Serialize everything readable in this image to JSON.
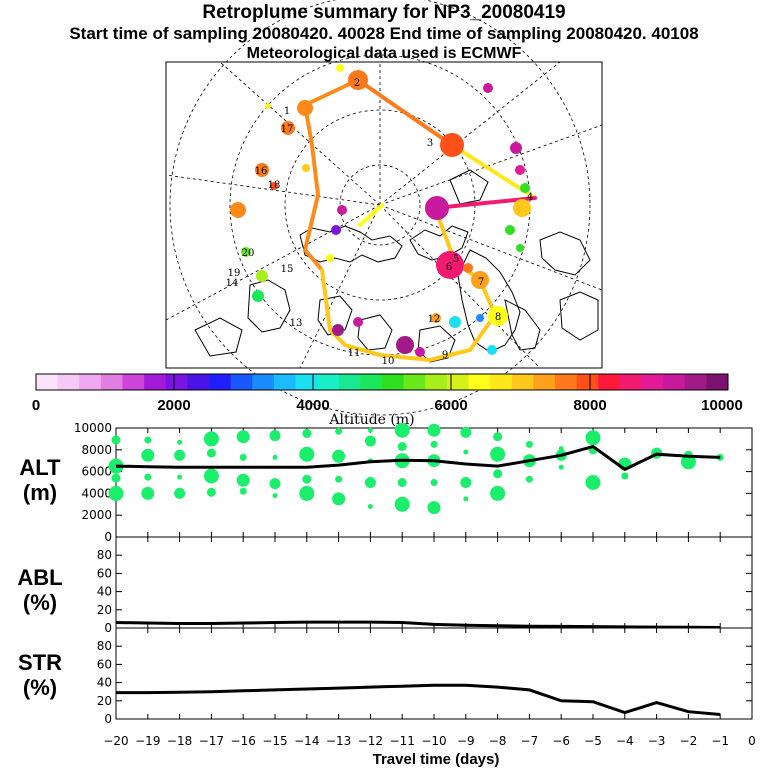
{
  "header": {
    "title": "Retroplume summary for NP3_20080419",
    "sampling_line": "Start time of sampling 20080420. 40028     End time of sampling 20080420. 40108",
    "met_line": "Meteorological data used is ECMWF"
  },
  "colorbar": {
    "ticks": [
      "0",
      "2000",
      "4000",
      "6000",
      "8000",
      "10000"
    ],
    "label": "Altitude (m)",
    "colors": [
      "#fbe3fb",
      "#f6c8f6",
      "#f0a8f0",
      "#e27ee2",
      "#cc44d8",
      "#a31ad8",
      "#7a14e0",
      "#4a14e8",
      "#2020ff",
      "#1a58ff",
      "#1a8cff",
      "#1abcff",
      "#1ae0f0",
      "#1af0c8",
      "#1ae890",
      "#1ae85a",
      "#30e020",
      "#6ae81a",
      "#a8ee1a",
      "#d8f01a",
      "#ffff1a",
      "#ffe81a",
      "#ffc81a",
      "#ffa01a",
      "#ff781a",
      "#ff501a",
      "#ff1a3c",
      "#f01a70",
      "#e01a98",
      "#c81a9c",
      "#a01a88",
      "#7a1470"
    ]
  },
  "map": {
    "day_labels": [
      "1",
      "2",
      "3",
      "4",
      "5",
      "6",
      "7",
      "8",
      "9",
      "10",
      "11",
      "12",
      "13",
      "14",
      "15",
      "16",
      "17",
      "18",
      "19",
      "20"
    ]
  },
  "chart_data": [
    {
      "type": "line",
      "panel": "ALT",
      "ylabel": "ALT\n(m)",
      "label_line1": "ALT",
      "label_line2": "(m)",
      "ylim": [
        0,
        10000
      ],
      "yticks": [
        "0",
        "2000",
        "4000",
        "6000",
        "8000",
        "10000"
      ],
      "x": [
        -20,
        -19,
        -18,
        -17,
        -16,
        -15,
        -14,
        -13,
        -12,
        -11,
        -10,
        -9,
        -8,
        -7,
        -6,
        -5,
        -4,
        -3,
        -2,
        -1
      ],
      "values": [
        6500,
        6450,
        6400,
        6400,
        6400,
        6400,
        6400,
        6600,
        6900,
        7050,
        7000,
        6700,
        6500,
        7000,
        7500,
        8300,
        6200,
        7600,
        7400,
        7300
      ],
      "clusters": [
        {
          "x": -20,
          "y": [
            8900,
            6500,
            5400,
            4000
          ]
        },
        {
          "x": -19,
          "y": [
            8900,
            7500,
            5500,
            4000
          ]
        },
        {
          "x": -18,
          "y": [
            8700,
            7500,
            5500,
            4000
          ]
        },
        {
          "x": -17,
          "y": [
            9000,
            7700,
            5600,
            4100
          ]
        },
        {
          "x": -16,
          "y": [
            9200,
            7300,
            5200,
            4200
          ]
        },
        {
          "x": -15,
          "y": [
            9300,
            7300,
            4900,
            3800
          ]
        },
        {
          "x": -14,
          "y": [
            9500,
            7600,
            5300,
            4000
          ]
        },
        {
          "x": -13,
          "y": [
            9700,
            7400,
            5300,
            3500
          ]
        },
        {
          "x": -12,
          "y": [
            9800,
            8800,
            7000,
            5000,
            2800
          ]
        },
        {
          "x": -11,
          "y": [
            9800,
            8300,
            7000,
            5000,
            3000
          ]
        },
        {
          "x": -10,
          "y": [
            9800,
            8500,
            7000,
            5000,
            2700
          ]
        },
        {
          "x": -9,
          "y": [
            9600,
            7800,
            5000,
            3500
          ]
        },
        {
          "x": -8,
          "y": [
            9200,
            7600,
            5800,
            4000
          ]
        },
        {
          "x": -7,
          "y": [
            8500,
            7000,
            5300
          ]
        },
        {
          "x": -6,
          "y": [
            8100,
            7500,
            6400
          ]
        },
        {
          "x": -5,
          "y": [
            9100,
            8000,
            5000
          ]
        },
        {
          "x": -4,
          "y": [
            6700,
            5600
          ]
        },
        {
          "x": -3,
          "y": [
            7700,
            7400
          ]
        },
        {
          "x": -2,
          "y": [
            7500,
            6900
          ]
        },
        {
          "x": -1,
          "y": [
            7300
          ]
        }
      ]
    },
    {
      "type": "line",
      "panel": "ABL",
      "label_line1": "ABL",
      "label_line2": "(%)",
      "ylim": [
        0,
        100
      ],
      "yticks": [
        "0",
        "20",
        "40",
        "60",
        "80"
      ],
      "x": [
        -20,
        -19,
        -18,
        -17,
        -16,
        -15,
        -14,
        -13,
        -12,
        -11,
        -10,
        -9,
        -8,
        -7,
        -6,
        -5,
        -4,
        -3,
        -2,
        -1
      ],
      "values": [
        6,
        5.5,
        5,
        5,
        5.5,
        6,
        6.5,
        6.5,
        6.5,
        6,
        4,
        3,
        2.5,
        2,
        1.8,
        1.5,
        1.2,
        1,
        0.8,
        0.5
      ]
    },
    {
      "type": "line",
      "panel": "STR",
      "label_line1": "STR",
      "label_line2": "(%)",
      "ylim": [
        0,
        100
      ],
      "yticks": [
        "0",
        "20",
        "40",
        "60",
        "80"
      ],
      "x": [
        -20,
        -19,
        -18,
        -17,
        -16,
        -15,
        -14,
        -13,
        -12,
        -11,
        -10,
        -9,
        -8,
        -7,
        -6,
        -5,
        -4,
        -3,
        -2,
        -1
      ],
      "values": [
        29,
        29,
        29.5,
        30,
        31,
        32,
        33,
        34,
        35,
        36,
        37,
        37,
        35,
        32,
        20,
        19,
        7,
        18,
        8,
        5
      ]
    }
  ],
  "xaxis": {
    "ticks": [
      "−20",
      "−19",
      "−18",
      "−17",
      "−16",
      "−15",
      "−14",
      "−13",
      "−12",
      "−11",
      "−10",
      "−9",
      "−8",
      "−7",
      "−6",
      "−5",
      "−4",
      "−3",
      "−2",
      "−1",
      "0"
    ],
    "label": "Travel time (days)"
  }
}
